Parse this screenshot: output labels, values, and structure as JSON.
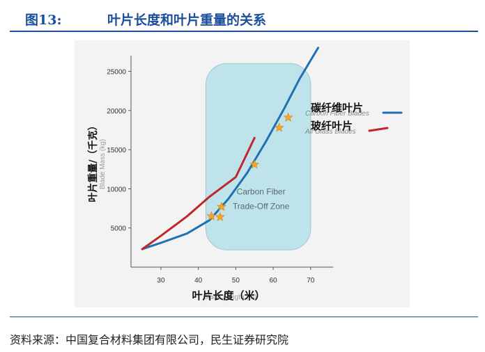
{
  "figure": {
    "number": "图13:",
    "title": "叶片长度和叶片重量的关系",
    "source": "资料来源：中国复合材料集团有限公司，民生证券研究院"
  },
  "colors": {
    "header": "#1a4f9c",
    "carbon": "#1f6fb5",
    "glass": "#c0262e",
    "zone_fill": "#bfe3ea",
    "star": "#f5a623"
  },
  "chart_data": {
    "type": "line",
    "xlabel": "叶片长度（米）",
    "xlabel_en": "Blade Length (m)",
    "ylabel": "叶片重量/（千克）",
    "ylabel_en": "Blade Mass (kg)",
    "xlim": [
      22,
      76
    ],
    "ylim": [
      0,
      27000
    ],
    "x_ticks": [
      30,
      40,
      50,
      60,
      70
    ],
    "y_ticks": [
      5000,
      10000,
      15000,
      20000,
      25000
    ],
    "grid": false,
    "legend_position": "top-right",
    "zone": {
      "label_lines": [
        "Carbon Fiber",
        "Trade-Off Zone"
      ],
      "x_range": [
        42,
        70
      ],
      "y_range": [
        2200,
        26000
      ]
    },
    "series": [
      {
        "name": "碳纤维叶片",
        "name_en": "Carbon Fiber Blades",
        "color": "#1f6fb5",
        "x": [
          25,
          30,
          37,
          43,
          48,
          53,
          58,
          63,
          67,
          72
        ],
        "y": [
          2300,
          3100,
          4300,
          6000,
          8700,
          12000,
          16000,
          20300,
          24000,
          28000
        ]
      },
      {
        "name": "玻纤叶片",
        "name_en": "All Glass Blades",
        "color": "#c0262e",
        "x": [
          25,
          30,
          37,
          43,
          50,
          55
        ],
        "y": [
          2300,
          4000,
          6500,
          9000,
          11500,
          16500
        ]
      }
    ],
    "markers": {
      "shape": "star",
      "x": [
        43.5,
        45.8,
        46.2,
        55,
        61.6,
        64
      ],
      "y": [
        6500,
        6400,
        7700,
        13100,
        17800,
        19100
      ]
    }
  }
}
